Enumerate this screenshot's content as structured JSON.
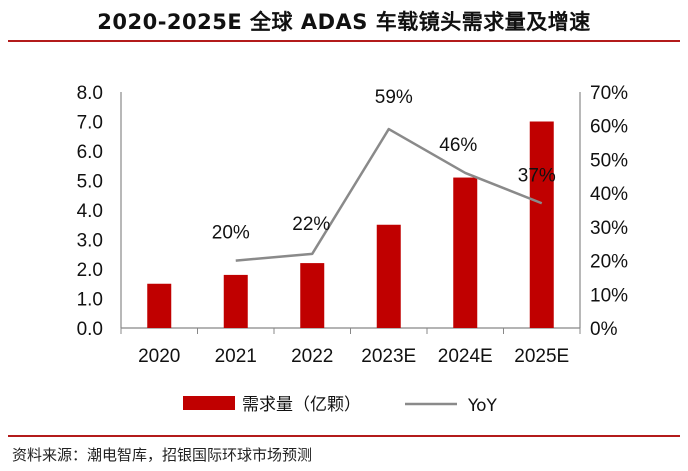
{
  "title": "2020-2025E 全球 ADAS 车载镜头需求量及增速",
  "source": "资料来源：潮电智库，招银国际环球市场预测",
  "colors": {
    "bar": "#c00000",
    "line": "#8a8a8a",
    "rule": "#b31b1b"
  },
  "chart_data": {
    "type": "bar",
    "categories": [
      "2020",
      "2021",
      "2022",
      "2023E",
      "2024E",
      "2025E"
    ],
    "series": [
      {
        "name": "需求量（亿颗）",
        "type": "bar",
        "axis": "left",
        "values": [
          1.5,
          1.8,
          2.2,
          3.5,
          5.1,
          7.0
        ]
      },
      {
        "name": "YoY",
        "type": "line",
        "axis": "right",
        "x": [
          "2021",
          "2022",
          "2023E",
          "2024E",
          "2025E"
        ],
        "values": [
          20,
          22,
          59,
          46,
          37
        ],
        "labels": [
          "20%",
          "22%",
          "59%",
          "46%",
          "37%"
        ]
      }
    ],
    "ylim_left": [
      0,
      8
    ],
    "ylim_right": [
      0,
      70
    ],
    "yticks_left": [
      "0.0",
      "1.0",
      "2.0",
      "3.0",
      "4.0",
      "5.0",
      "6.0",
      "7.0",
      "8.0"
    ],
    "yticks_right": [
      "0%",
      "10%",
      "20%",
      "30%",
      "40%",
      "50%",
      "60%",
      "70%"
    ],
    "grid": false,
    "legend_position": "bottom"
  }
}
